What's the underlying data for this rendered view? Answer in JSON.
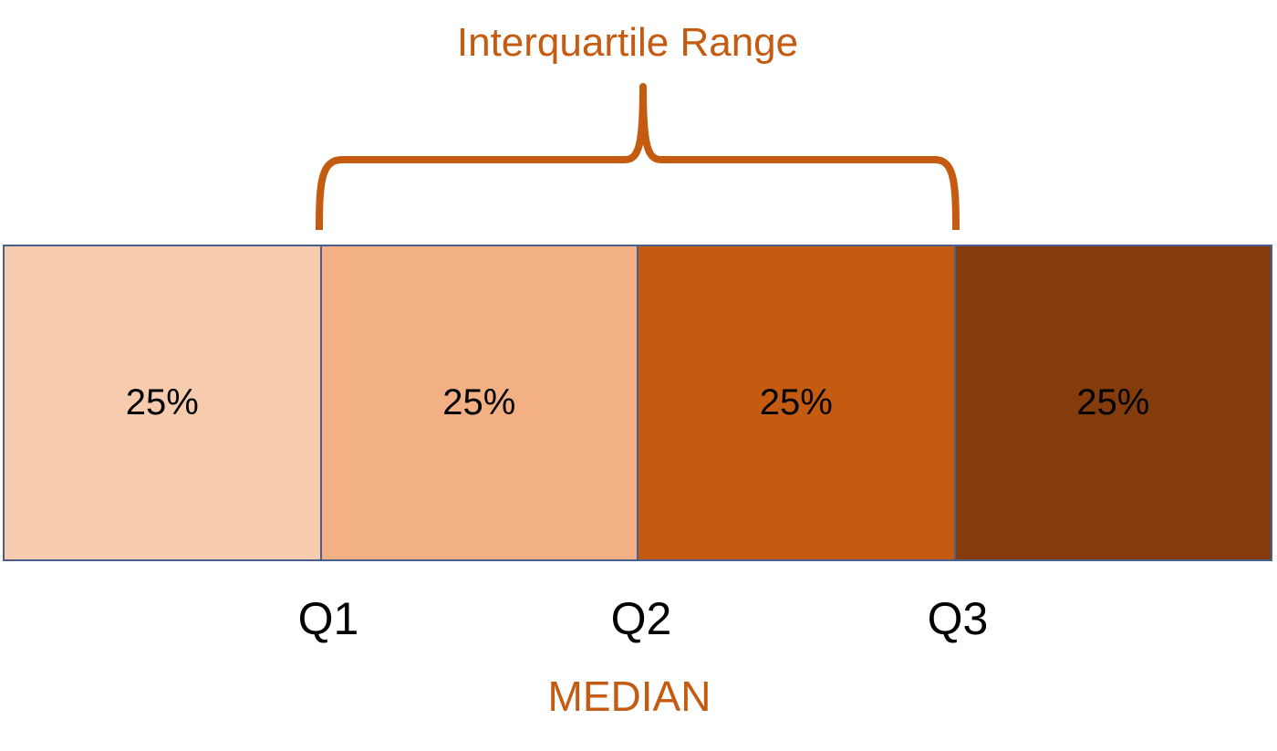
{
  "title": "Interquartile Range",
  "accent_color": "#c55a11",
  "border_color": "#4a5f8e",
  "segments": [
    {
      "label": "25%",
      "color": "#f7cbad"
    },
    {
      "label": "25%",
      "color": "#f3b085"
    },
    {
      "label": "25%",
      "color": "#c55a11"
    },
    {
      "label": "25%",
      "color": "#843c0c"
    }
  ],
  "quartiles": {
    "q1": "Q1",
    "q2": "Q2",
    "q3": "Q3"
  },
  "median_label": "MEDIAN"
}
